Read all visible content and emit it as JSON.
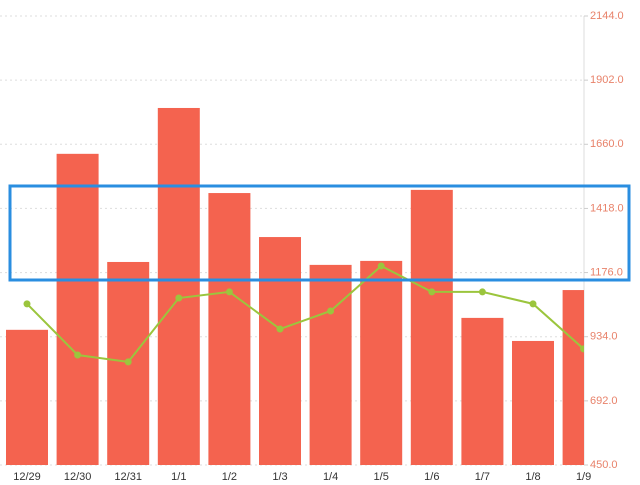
{
  "chart_data": {
    "type": "bar",
    "categories": [
      "12/29",
      "12/30",
      "12/31",
      "1/1",
      "1/2",
      "1/3",
      "1/4",
      "1/5",
      "1/6",
      "1/7",
      "1/8",
      "1/9"
    ],
    "series": [
      {
        "type": "bar",
        "color": "#f4634f",
        "values": [
          960,
          1624,
          1216,
          1797,
          1476,
          1310,
          1205,
          1220,
          1488,
          1005,
          918,
          1110
        ]
      },
      {
        "type": "line",
        "color": "#9bc53d",
        "values": [
          1058,
          865,
          839,
          1080,
          1103,
          963,
          1031,
          1201,
          1103,
          1103,
          1058,
          888
        ]
      }
    ],
    "ylim": [
      450,
      2144
    ],
    "yticks": [
      {
        "value": 450,
        "label": "450.0"
      },
      {
        "value": 692,
        "label": "692.0"
      },
      {
        "value": 934,
        "label": "934.0"
      },
      {
        "value": 1176,
        "label": "1176.0"
      },
      {
        "value": 1418,
        "label": "1418.0"
      },
      {
        "value": 1660,
        "label": "1660.0"
      },
      {
        "value": 1902,
        "label": "1902.0"
      },
      {
        "value": 2144,
        "label": "2144.0"
      }
    ],
    "grid": true
  }
}
